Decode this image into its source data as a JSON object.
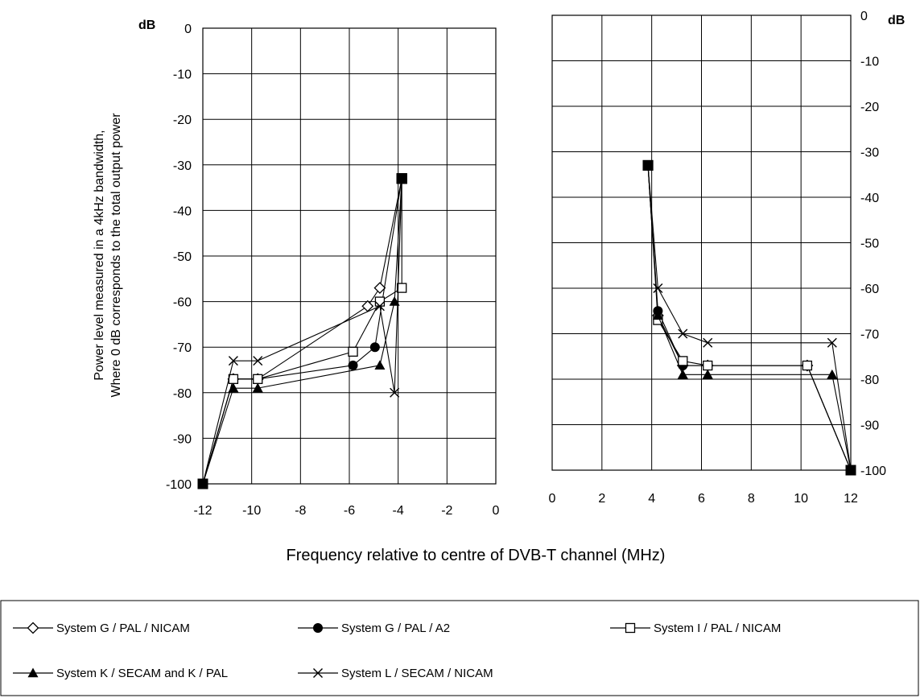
{
  "chart_data": {
    "type": "line",
    "xlabel": "Frequency relative to centre of DVB-T channel (MHz)",
    "ylabel_line1": "Power level measured in a 4kHz bandwidth,",
    "ylabel_line2": "Where 0 dB corresponds to the total output power",
    "unit_label": "dB",
    "grid": true,
    "legend_position": "bottom",
    "panels": [
      {
        "name": "left",
        "xlim": [
          -12,
          0
        ],
        "ylim": [
          -100,
          0
        ],
        "x_ticks": [
          "-12",
          "-10",
          "-8",
          "-6",
          "-4",
          "-2",
          "0"
        ],
        "y_ticks": [
          "0",
          "-10",
          "-20",
          "-30",
          "-40",
          "-50",
          "-60",
          "-70",
          "-80",
          "-90",
          "-100"
        ],
        "y_axis_side": "left"
      },
      {
        "name": "right",
        "xlim": [
          0,
          12
        ],
        "ylim": [
          -100,
          0
        ],
        "x_ticks": [
          "0",
          "2",
          "4",
          "6",
          "8",
          "10",
          "12"
        ],
        "y_ticks": [
          "0",
          "-10",
          "-20",
          "-30",
          "-40",
          "-50",
          "-60",
          "-70",
          "-80",
          "-90",
          "-100"
        ],
        "y_axis_side": "right"
      }
    ],
    "series": [
      {
        "name": "System G / PAL / NICAM",
        "marker": "diamond-open",
        "left": [
          [
            -12,
            -100
          ],
          [
            -10.75,
            -77
          ],
          [
            -9.75,
            -77
          ],
          [
            -5.25,
            -61
          ],
          [
            -4.75,
            -57
          ],
          [
            -3.85,
            -33
          ]
        ],
        "right": [
          [
            3.85,
            -33
          ],
          [
            4.25,
            -66
          ],
          [
            5.25,
            -77
          ],
          [
            6.25,
            -77
          ],
          [
            10.25,
            -77
          ],
          [
            12,
            -100
          ]
        ]
      },
      {
        "name": "System G / PAL / A2",
        "marker": "circle-filled",
        "left": [
          [
            -12,
            -100
          ],
          [
            -10.75,
            -77
          ],
          [
            -9.75,
            -77
          ],
          [
            -5.85,
            -74
          ],
          [
            -4.95,
            -70
          ],
          [
            -3.85,
            -33
          ]
        ],
        "right": [
          [
            3.85,
            -33
          ],
          [
            4.25,
            -65
          ],
          [
            5.25,
            -77
          ],
          [
            6.25,
            -77
          ],
          [
            10.25,
            -77
          ],
          [
            12,
            -100
          ]
        ]
      },
      {
        "name": "System I / PAL / NICAM",
        "marker": "square-open",
        "left": [
          [
            -12,
            -100
          ],
          [
            -10.75,
            -77
          ],
          [
            -9.75,
            -77
          ],
          [
            -5.85,
            -71
          ],
          [
            -4.75,
            -60
          ],
          [
            -3.85,
            -57
          ],
          [
            -3.85,
            -33
          ]
        ],
        "right": [
          [
            3.85,
            -33
          ],
          [
            4.25,
            -67
          ],
          [
            5.25,
            -76
          ],
          [
            6.25,
            -77
          ],
          [
            10.25,
            -77
          ],
          [
            12,
            -100
          ]
        ]
      },
      {
        "name": "System K / SECAM and K / PAL",
        "marker": "triangle-filled",
        "left": [
          [
            -12,
            -100
          ],
          [
            -10.75,
            -79
          ],
          [
            -9.75,
            -79
          ],
          [
            -4.75,
            -74
          ],
          [
            -4.15,
            -60
          ],
          [
            -3.85,
            -33
          ]
        ],
        "right": [
          [
            3.85,
            -33
          ],
          [
            4.25,
            -66
          ],
          [
            5.25,
            -79
          ],
          [
            6.25,
            -79
          ],
          [
            11.25,
            -79
          ],
          [
            12,
            -100
          ]
        ]
      },
      {
        "name": "System L / SECAM / NICAM",
        "marker": "x",
        "left": [
          [
            -12,
            -100
          ],
          [
            -10.75,
            -73
          ],
          [
            -9.75,
            -73
          ],
          [
            -4.75,
            -61
          ],
          [
            -4.15,
            -80
          ],
          [
            -3.85,
            -33
          ]
        ],
        "right": [
          [
            3.85,
            -33
          ],
          [
            4.25,
            -60
          ],
          [
            5.25,
            -70
          ],
          [
            6.25,
            -72
          ],
          [
            11.25,
            -72
          ],
          [
            12,
            -100
          ]
        ]
      }
    ]
  }
}
